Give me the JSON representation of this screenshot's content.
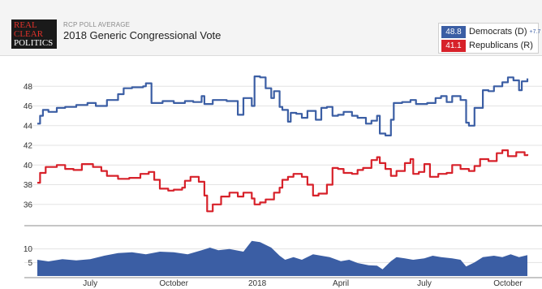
{
  "header": {
    "logo": [
      "REAL",
      "CLEAR",
      "POLITICS"
    ],
    "kicker": "RCP POLL AVERAGE",
    "title": "2018 Generic Congressional Vote"
  },
  "legend": [
    {
      "value": "48.8",
      "label": "Democrats (D)",
      "spread": "+7.7",
      "color": "#3b5ea4"
    },
    {
      "value": "41.1",
      "label": "Republicans (R)",
      "spread": "",
      "color": "#d7212a"
    }
  ],
  "chart_data": [
    {
      "type": "line",
      "x_unit": "month index (0 = Jan 2017)",
      "x_ticks": [
        {
          "x": 6,
          "label": "July"
        },
        {
          "x": 9,
          "label": "October"
        },
        {
          "x": 12,
          "label": "2018"
        },
        {
          "x": 15,
          "label": "April"
        },
        {
          "x": 18,
          "label": "July"
        },
        {
          "x": 21,
          "label": "October"
        }
      ],
      "xlim": [
        4.1,
        21.7
      ],
      "ylim": [
        34.5,
        50
      ],
      "y_ticks": [
        36,
        38,
        40,
        42,
        44,
        46,
        48
      ],
      "grid": true,
      "series": [
        {
          "name": "Democrats (D)",
          "color": "#3b5ea4",
          "points": [
            [
              4.1,
              44.2
            ],
            [
              4.2,
              45.0
            ],
            [
              4.3,
              45.6
            ],
            [
              4.5,
              45.4
            ],
            [
              4.8,
              45.8
            ],
            [
              5.1,
              45.9
            ],
            [
              5.5,
              46.1
            ],
            [
              5.9,
              46.3
            ],
            [
              6.2,
              46.0
            ],
            [
              6.6,
              46.6
            ],
            [
              6.9,
              46.6
            ],
            [
              7.0,
              47.2
            ],
            [
              7.2,
              47.8
            ],
            [
              7.5,
              47.9
            ],
            [
              7.9,
              48.0
            ],
            [
              8.0,
              48.3
            ],
            [
              8.2,
              46.3
            ],
            [
              8.6,
              46.5
            ],
            [
              9.0,
              46.3
            ],
            [
              9.4,
              46.5
            ],
            [
              9.7,
              46.4
            ],
            [
              10.0,
              47.0
            ],
            [
              10.1,
              46.2
            ],
            [
              10.4,
              46.6
            ],
            [
              10.9,
              46.5
            ],
            [
              11.3,
              45.1
            ],
            [
              11.5,
              46.8
            ],
            [
              11.8,
              46.0
            ],
            [
              11.9,
              49.0
            ],
            [
              12.1,
              48.9
            ],
            [
              12.3,
              47.8
            ],
            [
              12.5,
              46.8
            ],
            [
              12.6,
              47.5
            ],
            [
              12.8,
              45.9
            ],
            [
              12.9,
              45.6
            ],
            [
              13.1,
              44.4
            ],
            [
              13.2,
              45.3
            ],
            [
              13.4,
              45.2
            ],
            [
              13.6,
              44.8
            ],
            [
              13.8,
              45.5
            ],
            [
              14.1,
              44.6
            ],
            [
              14.3,
              45.8
            ],
            [
              14.5,
              45.9
            ],
            [
              14.7,
              45.0
            ],
            [
              14.9,
              45.1
            ],
            [
              15.1,
              45.4
            ],
            [
              15.4,
              45.0
            ],
            [
              15.6,
              44.8
            ],
            [
              15.9,
              44.2
            ],
            [
              16.1,
              44.5
            ],
            [
              16.3,
              45.0
            ],
            [
              16.4,
              43.2
            ],
            [
              16.6,
              43.0
            ],
            [
              16.8,
              44.6
            ],
            [
              16.9,
              46.3
            ],
            [
              17.2,
              46.4
            ],
            [
              17.5,
              46.6
            ],
            [
              17.7,
              46.2
            ],
            [
              18.1,
              46.3
            ],
            [
              18.4,
              46.8
            ],
            [
              18.6,
              47.0
            ],
            [
              18.8,
              46.4
            ],
            [
              19.0,
              47.0
            ],
            [
              19.3,
              46.6
            ],
            [
              19.5,
              44.3
            ],
            [
              19.6,
              44.0
            ],
            [
              19.8,
              45.8
            ],
            [
              20.1,
              47.6
            ],
            [
              20.3,
              47.5
            ],
            [
              20.5,
              48.0
            ],
            [
              20.8,
              48.4
            ],
            [
              21.0,
              48.9
            ],
            [
              21.2,
              48.6
            ],
            [
              21.4,
              47.6
            ],
            [
              21.5,
              48.5
            ],
            [
              21.7,
              48.8
            ]
          ]
        },
        {
          "name": "Republicans (R)",
          "color": "#d7212a",
          "points": [
            [
              4.1,
              38.2
            ],
            [
              4.2,
              39.2
            ],
            [
              4.4,
              39.8
            ],
            [
              4.8,
              40.0
            ],
            [
              5.1,
              39.6
            ],
            [
              5.4,
              39.5
            ],
            [
              5.7,
              40.1
            ],
            [
              6.1,
              39.8
            ],
            [
              6.4,
              39.4
            ],
            [
              6.6,
              38.9
            ],
            [
              7.0,
              38.6
            ],
            [
              7.4,
              38.7
            ],
            [
              7.8,
              39.1
            ],
            [
              8.1,
              39.3
            ],
            [
              8.3,
              38.5
            ],
            [
              8.5,
              37.6
            ],
            [
              8.8,
              37.4
            ],
            [
              9.0,
              37.5
            ],
            [
              9.3,
              37.7
            ],
            [
              9.4,
              38.4
            ],
            [
              9.6,
              38.8
            ],
            [
              9.9,
              38.3
            ],
            [
              10.1,
              36.9
            ],
            [
              10.2,
              35.3
            ],
            [
              10.4,
              36.0
            ],
            [
              10.7,
              36.8
            ],
            [
              11.0,
              37.2
            ],
            [
              11.3,
              36.8
            ],
            [
              11.5,
              37.2
            ],
            [
              11.8,
              36.6
            ],
            [
              11.9,
              36.0
            ],
            [
              12.1,
              36.2
            ],
            [
              12.3,
              36.5
            ],
            [
              12.6,
              37.2
            ],
            [
              12.8,
              37.7
            ],
            [
              12.9,
              38.5
            ],
            [
              13.1,
              38.8
            ],
            [
              13.3,
              39.1
            ],
            [
              13.6,
              38.8
            ],
            [
              13.8,
              38.0
            ],
            [
              14.0,
              36.9
            ],
            [
              14.2,
              37.1
            ],
            [
              14.5,
              38.0
            ],
            [
              14.7,
              39.7
            ],
            [
              14.9,
              39.6
            ],
            [
              15.1,
              39.2
            ],
            [
              15.4,
              39.1
            ],
            [
              15.6,
              39.5
            ],
            [
              15.8,
              39.7
            ],
            [
              16.1,
              40.5
            ],
            [
              16.3,
              40.8
            ],
            [
              16.4,
              40.2
            ],
            [
              16.6,
              39.6
            ],
            [
              16.8,
              38.9
            ],
            [
              17.0,
              39.4
            ],
            [
              17.3,
              40.2
            ],
            [
              17.5,
              40.6
            ],
            [
              17.6,
              39.1
            ],
            [
              17.8,
              39.3
            ],
            [
              18.0,
              40.1
            ],
            [
              18.2,
              38.8
            ],
            [
              18.5,
              39.1
            ],
            [
              18.8,
              39.2
            ],
            [
              19.0,
              40.0
            ],
            [
              19.3,
              39.6
            ],
            [
              19.6,
              39.4
            ],
            [
              19.8,
              39.9
            ],
            [
              20.0,
              40.6
            ],
            [
              20.3,
              40.4
            ],
            [
              20.6,
              41.2
            ],
            [
              20.8,
              41.5
            ],
            [
              21.0,
              40.9
            ],
            [
              21.3,
              41.3
            ],
            [
              21.6,
              41.0
            ],
            [
              21.7,
              41.1
            ]
          ]
        }
      ]
    },
    {
      "type": "area",
      "x_unit": "month index (0 = Jan 2017)",
      "xlim": [
        4.1,
        21.7
      ],
      "ylim": [
        0,
        15
      ],
      "y_ticks": [
        5,
        10
      ],
      "series": [
        {
          "name": "Spread",
          "color": "#3b5ea4",
          "points": [
            [
              4.1,
              6.0
            ],
            [
              4.5,
              5.4
            ],
            [
              5.0,
              6.2
            ],
            [
              5.5,
              5.8
            ],
            [
              6.0,
              6.2
            ],
            [
              6.5,
              7.5
            ],
            [
              7.0,
              8.5
            ],
            [
              7.5,
              8.8
            ],
            [
              8.0,
              8.0
            ],
            [
              8.5,
              9.0
            ],
            [
              9.0,
              8.8
            ],
            [
              9.5,
              8.0
            ],
            [
              10.0,
              9.5
            ],
            [
              10.3,
              10.5
            ],
            [
              10.6,
              9.5
            ],
            [
              11.0,
              10.0
            ],
            [
              11.5,
              9.0
            ],
            [
              11.8,
              13.0
            ],
            [
              12.1,
              12.5
            ],
            [
              12.5,
              10.5
            ],
            [
              12.8,
              7.5
            ],
            [
              13.0,
              6.0
            ],
            [
              13.3,
              7.0
            ],
            [
              13.6,
              6.0
            ],
            [
              14.0,
              8.0
            ],
            [
              14.3,
              7.5
            ],
            [
              14.6,
              7.0
            ],
            [
              15.0,
              5.5
            ],
            [
              15.3,
              6.0
            ],
            [
              15.6,
              4.8
            ],
            [
              16.0,
              4.0
            ],
            [
              16.3,
              3.8
            ],
            [
              16.5,
              2.5
            ],
            [
              16.8,
              5.5
            ],
            [
              17.0,
              7.0
            ],
            [
              17.3,
              6.5
            ],
            [
              17.6,
              6.0
            ],
            [
              18.0,
              6.5
            ],
            [
              18.3,
              7.5
            ],
            [
              18.6,
              7.0
            ],
            [
              19.0,
              6.5
            ],
            [
              19.3,
              6.0
            ],
            [
              19.5,
              3.5
            ],
            [
              19.8,
              5.0
            ],
            [
              20.1,
              7.0
            ],
            [
              20.5,
              7.5
            ],
            [
              20.8,
              7.0
            ],
            [
              21.1,
              8.0
            ],
            [
              21.4,
              7.0
            ],
            [
              21.7,
              7.7
            ]
          ]
        }
      ]
    }
  ]
}
